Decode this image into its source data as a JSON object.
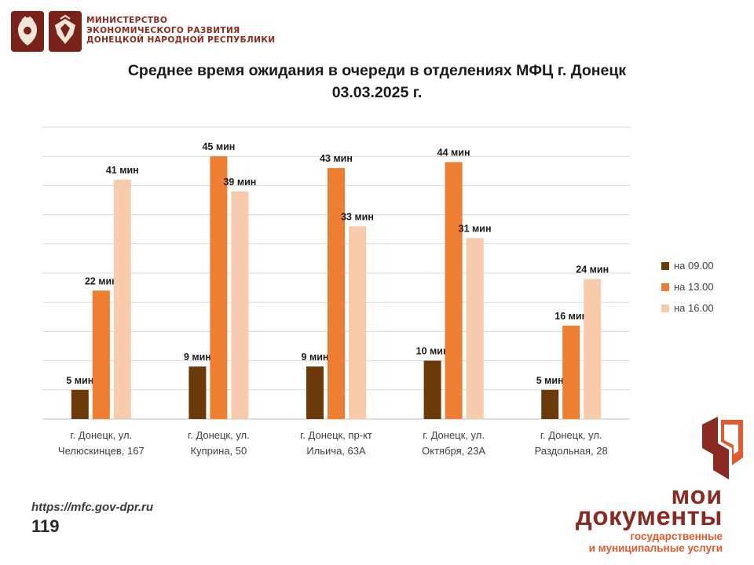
{
  "header": {
    "ministry_lines": [
      "МИНИСТЕРСТВО",
      "ЭКОНОМИЧЕСКОГО РАЗВИТИЯ",
      "ДОНЕЦКОЙ НАРОДНОЙ РЕСПУБЛИКИ"
    ],
    "emblem_icons": [
      "russia-coat-of-arms-icon",
      "dpr-coat-of-arms-icon"
    ]
  },
  "title_line1": "Среднее время ожидания в очереди в отделениях МФЦ г. Донецк",
  "title_line2": "03.03.2025 г.",
  "chart_data": {
    "type": "bar",
    "title": "Среднее время ожидания в очереди в отделениях МФЦ г. Донецк 03.03.2025 г.",
    "categories": [
      [
        "г. Донецк, ул.",
        "Челюскинцев, 167"
      ],
      [
        "г. Донецк, ул.",
        "Куприна, 50"
      ],
      [
        "г. Донецк, пр-кт",
        "Ильича, 63А"
      ],
      [
        "г. Донецк, ул.",
        "Октября, 23А"
      ],
      [
        "г. Донецк, ул.",
        "Раздольная, 28"
      ]
    ],
    "series": [
      {
        "name": "на 09.00",
        "color": "#6b3a08",
        "values": [
          5,
          9,
          9,
          10,
          5
        ],
        "labels": [
          "5 мин",
          "9 мин",
          "9 мин",
          "10 мин",
          "5 мин"
        ]
      },
      {
        "name": "на 13.00",
        "color": "#ee7e32",
        "values": [
          22,
          45,
          43,
          44,
          16
        ],
        "labels": [
          "22 мин",
          "45 мин",
          "43 мин",
          "44 мин",
          "16 мин"
        ]
      },
      {
        "name": "на 16.00",
        "color": "#f8cbad",
        "values": [
          41,
          39,
          33,
          31,
          24
        ],
        "labels": [
          "41 мин",
          "39 мин",
          "33 мин",
          "31 мин",
          "24 мин"
        ]
      }
    ],
    "ylim": [
      0,
      50
    ],
    "grid": true,
    "legend_position": "right"
  },
  "footer": {
    "url": "https://mfc.gov-dpr.ru",
    "page_number": "119"
  },
  "brand": {
    "line1": "мои",
    "line2": "документы",
    "line3": "государственные",
    "line4": "и муниципальные услуги",
    "accent_color": "#e25b2d",
    "primary_color": "#8a2a22"
  }
}
